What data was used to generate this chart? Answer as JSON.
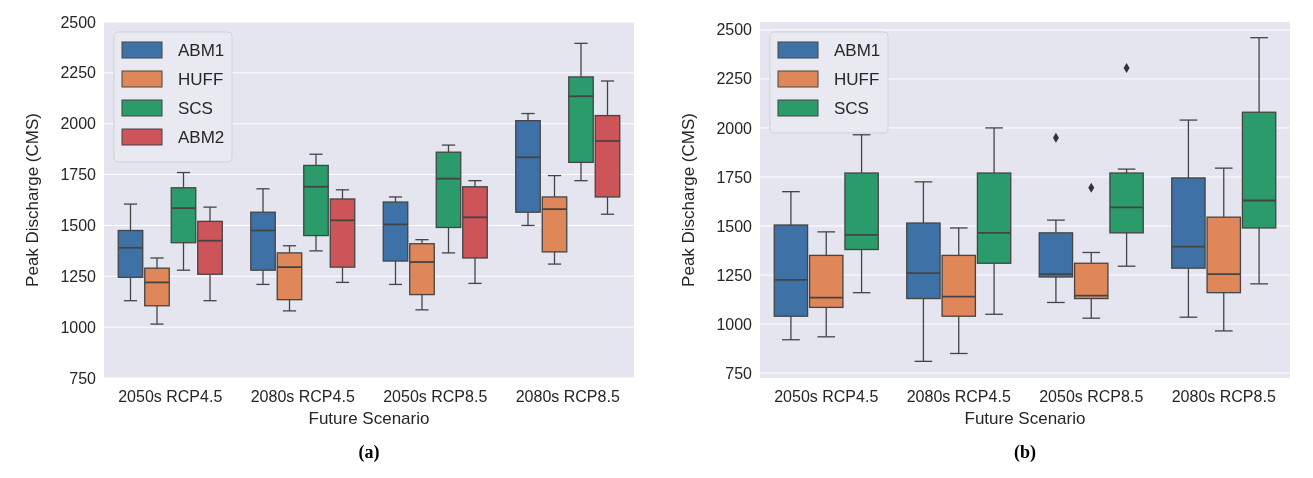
{
  "chart_data": [
    {
      "type": "box",
      "xlabel": "Future Scenario",
      "ylabel": "Peak Discharge (CMS)",
      "annotations": [
        "(a)"
      ],
      "categories": [
        "2050s RCP4.5",
        "2080s RCP4.5",
        "2050s RCP8.5",
        "2080s RCP8.5"
      ],
      "ylim": [
        750,
        2500
      ],
      "yticks": [
        750,
        1000,
        1250,
        1500,
        1750,
        2000,
        2250,
        2500
      ],
      "grid": "y",
      "legend": "top left",
      "series": [
        {
          "name": "ABM1",
          "color": "#3e72a6",
          "boxes": [
            {
              "low": 1130,
              "q1": 1245,
              "median": 1390,
              "q3": 1475,
              "high": 1605
            },
            {
              "low": 1210,
              "q1": 1280,
              "median": 1475,
              "q3": 1565,
              "high": 1680
            },
            {
              "low": 1210,
              "q1": 1325,
              "median": 1505,
              "q3": 1615,
              "high": 1640
            },
            {
              "low": 1500,
              "q1": 1565,
              "median": 1835,
              "q3": 2015,
              "high": 2050
            }
          ]
        },
        {
          "name": "HUFF",
          "color": "#e0875a",
          "boxes": [
            {
              "low": 1015,
              "q1": 1105,
              "median": 1220,
              "q3": 1290,
              "high": 1340
            },
            {
              "low": 1080,
              "q1": 1135,
              "median": 1295,
              "q3": 1365,
              "high": 1400
            },
            {
              "low": 1085,
              "q1": 1160,
              "median": 1320,
              "q3": 1410,
              "high": 1430
            },
            {
              "low": 1310,
              "q1": 1370,
              "median": 1580,
              "q3": 1640,
              "high": 1745
            }
          ]
        },
        {
          "name": "SCS",
          "color": "#2b9b6b",
          "boxes": [
            {
              "low": 1280,
              "q1": 1415,
              "median": 1585,
              "q3": 1685,
              "high": 1760
            },
            {
              "low": 1375,
              "q1": 1450,
              "median": 1690,
              "q3": 1795,
              "high": 1850
            },
            {
              "low": 1365,
              "q1": 1490,
              "median": 1730,
              "q3": 1860,
              "high": 1895
            },
            {
              "low": 1720,
              "q1": 1810,
              "median": 2135,
              "q3": 2230,
              "high": 2395
            }
          ]
        },
        {
          "name": "ABM2",
          "color": "#cd555a",
          "boxes": [
            {
              "low": 1130,
              "q1": 1260,
              "median": 1425,
              "q3": 1520,
              "high": 1590
            },
            {
              "low": 1220,
              "q1": 1295,
              "median": 1525,
              "q3": 1630,
              "high": 1675
            },
            {
              "low": 1215,
              "q1": 1340,
              "median": 1540,
              "q3": 1690,
              "high": 1720
            },
            {
              "low": 1555,
              "q1": 1640,
              "median": 1915,
              "q3": 2040,
              "high": 2210
            }
          ]
        }
      ]
    },
    {
      "type": "box",
      "xlabel": "Future Scenario",
      "ylabel": "Peak Discharge (CMS)",
      "annotations": [
        "(b)"
      ],
      "categories": [
        "2050s RCP4.5",
        "2080s RCP4.5",
        "2050s RCP8.5",
        "2080s RCP8.5"
      ],
      "ylim": [
        725,
        2540
      ],
      "yticks": [
        750,
        1000,
        1250,
        1500,
        1750,
        2000,
        2250,
        2500
      ],
      "grid": "y",
      "legend": "top left",
      "series": [
        {
          "name": "ABM1",
          "color": "#3e72a6",
          "boxes": [
            {
              "low": 920,
              "q1": 1040,
              "median": 1225,
              "q3": 1505,
              "high": 1675
            },
            {
              "low": 810,
              "q1": 1130,
              "median": 1260,
              "q3": 1515,
              "high": 1725
            },
            {
              "low": 1110,
              "q1": 1240,
              "median": 1255,
              "q3": 1465,
              "high": 1530,
              "outliers": [
                1950
              ]
            },
            {
              "low": 1035,
              "q1": 1285,
              "median": 1395,
              "q3": 1745,
              "high": 2040
            }
          ]
        },
        {
          "name": "HUFF",
          "color": "#e0875a",
          "boxes": [
            {
              "low": 935,
              "q1": 1085,
              "median": 1135,
              "q3": 1350,
              "high": 1470
            },
            {
              "low": 850,
              "q1": 1040,
              "median": 1140,
              "q3": 1350,
              "high": 1490
            },
            {
              "low": 1030,
              "q1": 1130,
              "median": 1145,
              "q3": 1310,
              "high": 1365,
              "outliers": [
                1695
              ]
            },
            {
              "low": 965,
              "q1": 1160,
              "median": 1255,
              "q3": 1545,
              "high": 1795
            }
          ]
        },
        {
          "name": "SCS",
          "color": "#2b9b6b",
          "boxes": [
            {
              "low": 1160,
              "q1": 1380,
              "median": 1455,
              "q3": 1770,
              "high": 1965
            },
            {
              "low": 1050,
              "q1": 1310,
              "median": 1465,
              "q3": 1770,
              "high": 2000
            },
            {
              "low": 1295,
              "q1": 1465,
              "median": 1595,
              "q3": 1770,
              "high": 1790,
              "outliers": [
                2305
              ]
            },
            {
              "low": 1205,
              "q1": 1490,
              "median": 1630,
              "q3": 2080,
              "high": 2460
            }
          ]
        }
      ]
    }
  ]
}
